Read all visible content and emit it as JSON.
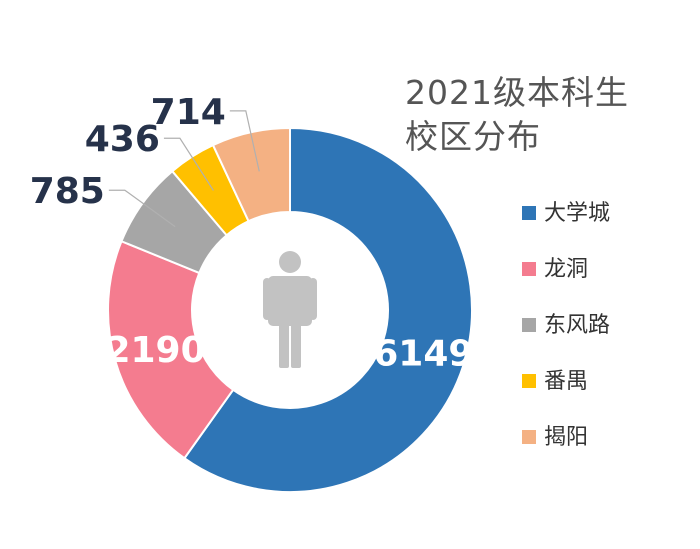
{
  "chart_data": {
    "type": "pie",
    "title": [
      "2021级本科生",
      "校区分布"
    ],
    "categories": [
      "大学城",
      "龙洞",
      "东风路",
      "番禺",
      "揭阳"
    ],
    "values": [
      6149,
      2190,
      785,
      436,
      714
    ],
    "colors": [
      "#2e75b6",
      "#f47c8f",
      "#a6a6a6",
      "#ffc000",
      "#f4b183"
    ],
    "legend": "right",
    "icon": "person-icon"
  }
}
